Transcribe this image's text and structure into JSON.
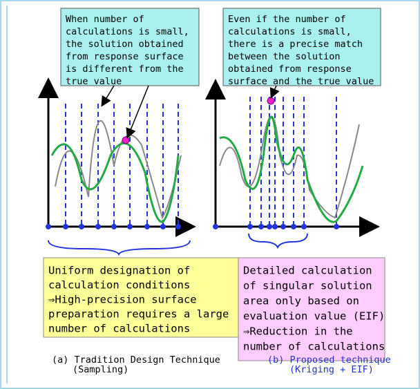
{
  "panels": [
    {
      "callout": [
        "When number of",
        "calculations is small,",
        "the solution obtained",
        "from response surface",
        "is different from the",
        "true value"
      ],
      "note": [
        "Uniform designation of",
        "calculation conditions",
        "⇒High-precision surface",
        "preparation requires a large",
        "number of calculations"
      ],
      "caption": [
        "(a) Tradition Design Technique",
        "(Sampling)"
      ]
    },
    {
      "callout": [
        "Even if the number of",
        "calculations is small,",
        "there is a precise match",
        "between the solution",
        "obtained from response",
        "surface and the true value"
      ],
      "note": [
        "Detailed calculation",
        "of singular solution",
        "area only based on",
        "evaluation value (EIF)",
        "⇒Reduction in the",
        "number of calculations"
      ],
      "caption": [
        "(b) Proposed technique",
        "(Kriging + EIF)"
      ]
    }
  ]
}
